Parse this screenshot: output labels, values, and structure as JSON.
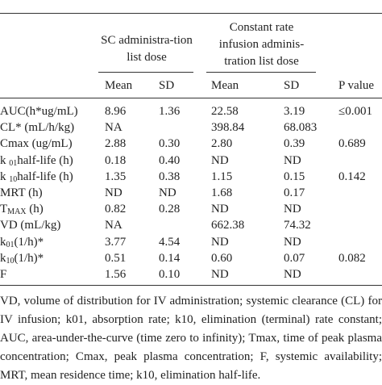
{
  "table": {
    "groups": [
      "SC administra-tion list dose",
      "Constant rate infusion adminis-tration list dose"
    ],
    "columns": [
      "Mean",
      "SD",
      "Mean",
      "SD",
      "P value"
    ],
    "rows": [
      [
        [
          {
            "t": "AUC(h*ug/mL)"
          }
        ],
        "8.96",
        "1.36",
        "22.58",
        "3.19",
        "≤0.001"
      ],
      [
        [
          {
            "t": "CL* (mL/h/kg)"
          }
        ],
        "NA",
        null,
        "398.84",
        "68.083",
        null
      ],
      [
        [
          {
            "t": "Cmax (ug/mL)"
          }
        ],
        "2.88",
        "0.30",
        "2.80",
        "0.39",
        "0.689"
      ],
      [
        [
          {
            "t": "k "
          },
          {
            "sub": "01"
          },
          {
            "t": "half-life (h)"
          }
        ],
        "0.18",
        "0.40",
        "ND",
        "ND",
        null
      ],
      [
        [
          {
            "t": "k "
          },
          {
            "sub": "10"
          },
          {
            "t": "half-life (h)"
          }
        ],
        "1.35",
        "0.38",
        "1.15",
        "0.15",
        "0.142"
      ],
      [
        [
          {
            "t": "MRT (h)"
          }
        ],
        "ND",
        "ND",
        "1.68",
        "0.17",
        null
      ],
      [
        [
          {
            "t": "T"
          },
          {
            "sub": "MAX"
          },
          {
            "t": " (h)"
          }
        ],
        "0.82",
        "0.28",
        "ND",
        "ND",
        null
      ],
      [
        [
          {
            "t": "VD (mL/kg)"
          }
        ],
        "NA",
        null,
        "662.38",
        "74.32",
        null
      ],
      [
        [
          {
            "t": "k"
          },
          {
            "sub": "01"
          },
          {
            "t": "(1/h)*"
          }
        ],
        "3.77",
        "4.54",
        "ND",
        "ND",
        null
      ],
      [
        [
          {
            "t": "k"
          },
          {
            "sub": "10"
          },
          {
            "t": "(1/h)*"
          }
        ],
        "0.51",
        "0.14",
        "0.60",
        "0.07",
        "0.082"
      ],
      [
        [
          {
            "t": "F"
          }
        ],
        "1.56",
        "0.10",
        "ND",
        "ND",
        null
      ]
    ]
  },
  "footnote": "VD, volume of distribution for IV administration; systemic clearance (CL) for IV infusion; k01, absorption rate; k10, elimination (terminal) rate constant; AUC, area-under-the-curve (time zero to infinity); Tmax, time of peak plasma concentration; Cmax, peak plasma concentration; F, systemic availability; MRT, mean residence time; k10, elimination half-life."
}
